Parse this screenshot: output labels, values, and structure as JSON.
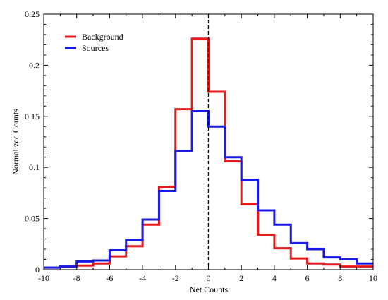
{
  "chart_data": {
    "type": "histogram",
    "title": "",
    "xlabel": "Net Counts",
    "ylabel": "Normalized Counts",
    "xlim": [
      -10,
      10
    ],
    "ylim": [
      0,
      0.25
    ],
    "x_ticks": [
      -10,
      -8,
      -6,
      -4,
      -2,
      0,
      2,
      4,
      6,
      8,
      10
    ],
    "x_tick_labels": [
      "-10",
      "-8",
      "-6",
      "-4",
      "-2",
      "0",
      "2",
      "4",
      "6",
      "8",
      "10"
    ],
    "y_ticks": [
      0,
      0.05,
      0.1,
      0.15,
      0.2,
      0.25
    ],
    "y_tick_labels": [
      "0",
      "0.05",
      "0.1",
      "0.15",
      "0.2",
      "0.25"
    ],
    "grid": false,
    "legend_position": "top-left",
    "reference_line": {
      "x": 0,
      "style": "dashed",
      "color": "#000000"
    },
    "bin_edges": [
      -10,
      -9,
      -8,
      -7,
      -6,
      -5,
      -4,
      -3,
      -2,
      -1,
      0,
      1,
      2,
      3,
      4,
      5,
      6,
      7,
      8,
      9,
      10
    ],
    "series": [
      {
        "name": "Background",
        "color": "#e41a1c",
        "values": [
          0.002,
          0.003,
          0.004,
          0.006,
          0.013,
          0.023,
          0.044,
          0.081,
          0.157,
          0.226,
          0.174,
          0.106,
          0.064,
          0.034,
          0.021,
          0.011,
          0.006,
          0.005,
          0.003,
          0.003
        ]
      },
      {
        "name": "Sources",
        "color": "#1a1ae4",
        "values": [
          0.002,
          0.003,
          0.008,
          0.009,
          0.019,
          0.029,
          0.049,
          0.077,
          0.116,
          0.155,
          0.14,
          0.11,
          0.088,
          0.058,
          0.044,
          0.026,
          0.02,
          0.012,
          0.01,
          0.006
        ]
      }
    ]
  }
}
